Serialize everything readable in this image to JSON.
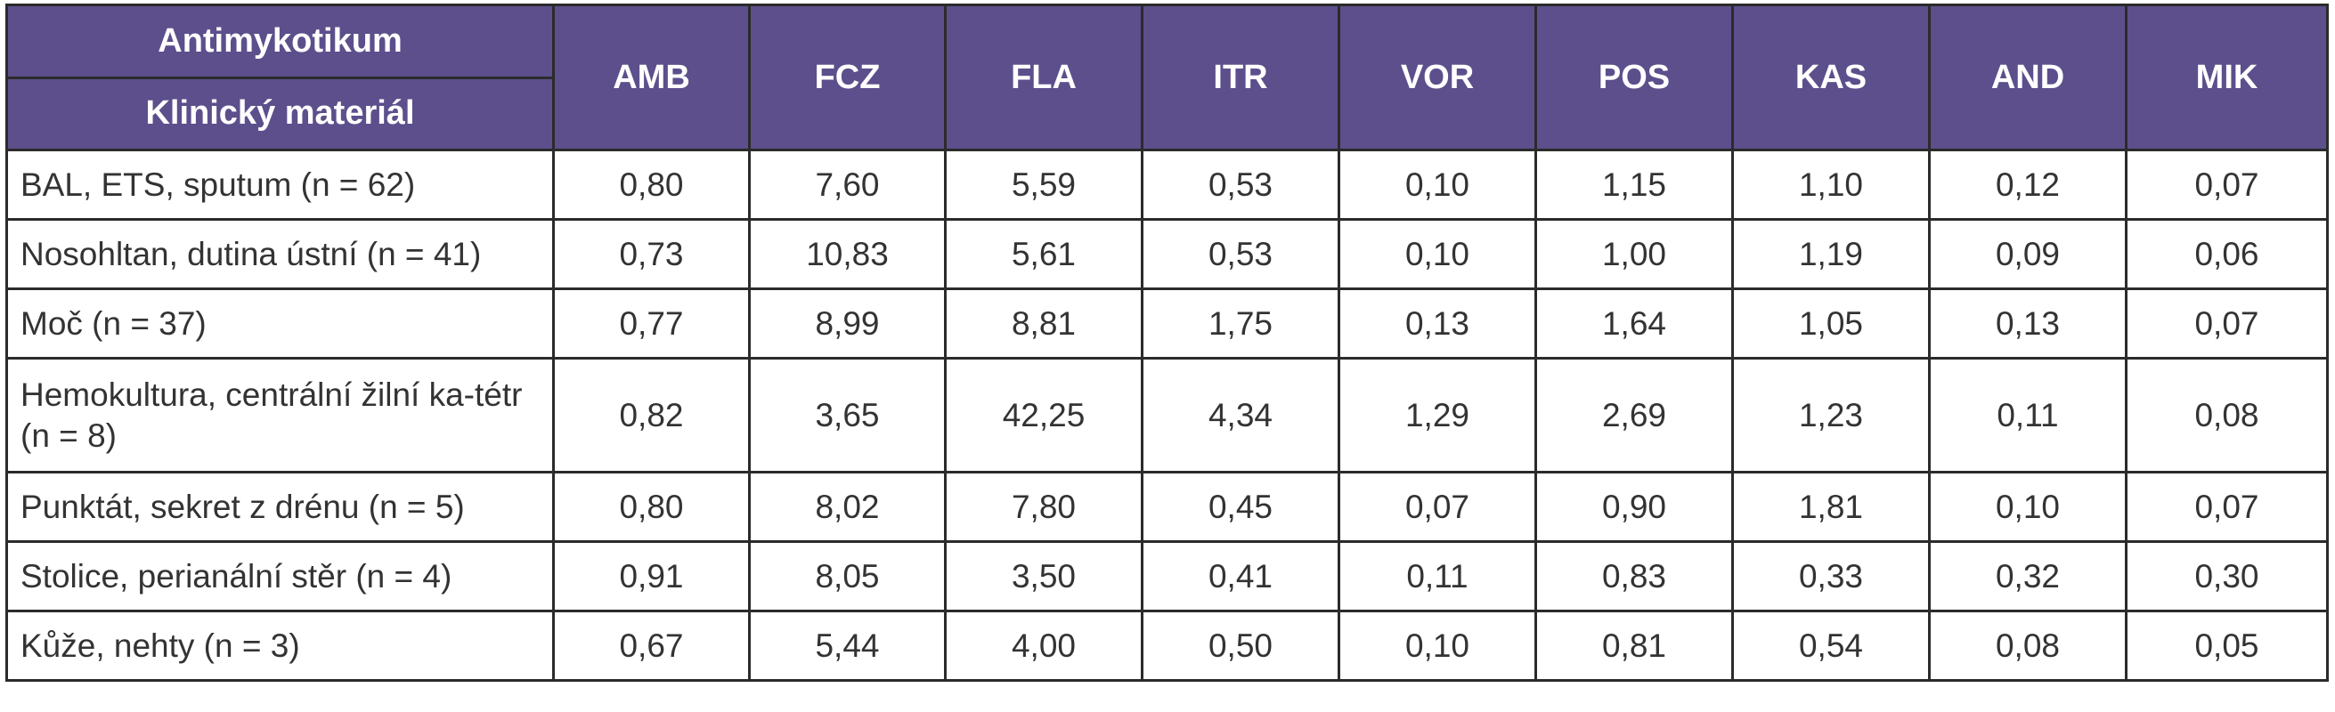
{
  "header": {
    "corner_top": "Antimykotikum",
    "corner_bottom": "Klinický materiál",
    "columns": [
      "AMB",
      "FCZ",
      "FLA",
      "ITR",
      "VOR",
      "POS",
      "KAS",
      "AND",
      "MIK"
    ]
  },
  "rows": [
    {
      "label": "BAL, ETS, sputum (n = 62)",
      "values": [
        "0,80",
        "7,60",
        "5,59",
        "0,53",
        "0,10",
        "1,15",
        "1,10",
        "0,12",
        "0,07"
      ]
    },
    {
      "label": "Nosohltan, dutina ústní (n = 41)",
      "values": [
        "0,73",
        "10,83",
        "5,61",
        "0,53",
        "0,10",
        "1,00",
        "1,19",
        "0,09",
        "0,06"
      ]
    },
    {
      "label": "Moč (n = 37)",
      "values": [
        "0,77",
        "8,99",
        "8,81",
        "1,75",
        "0,13",
        "1,64",
        "1,05",
        "0,13",
        "0,07"
      ]
    },
    {
      "label": "Hemokultura, centrální žilní ka-tétr (n = 8)",
      "values": [
        "0,82",
        "3,65",
        "42,25",
        "4,34",
        "1,29",
        "2,69",
        "1,23",
        "0,11",
        "0,08"
      ]
    },
    {
      "label": "Punktát, sekret z drénu (n = 5)",
      "values": [
        "0,80",
        "8,02",
        "7,80",
        "0,45",
        "0,07",
        "0,90",
        "1,81",
        "0,10",
        "0,07"
      ]
    },
    {
      "label": "Stolice, perianální stěr (n = 4)",
      "values": [
        "0,91",
        "8,05",
        "3,50",
        "0,41",
        "0,11",
        "0,83",
        "0,33",
        "0,32",
        "0,30"
      ]
    },
    {
      "label": "Kůže, nehty (n = 3)",
      "values": [
        "0,67",
        "5,44",
        "4,00",
        "0,50",
        "0,10",
        "0,81",
        "0,54",
        "0,08",
        "0,05"
      ]
    }
  ],
  "colors": {
    "header_bg": "#5d4f8c",
    "header_text": "#ffffff",
    "cell_text": "#333333",
    "border": "#2b2b2b"
  }
}
